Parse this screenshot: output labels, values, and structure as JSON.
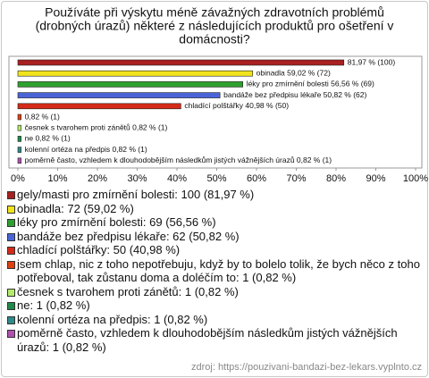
{
  "chart_data": {
    "type": "bar",
    "orientation": "horizontal",
    "title": [
      "Používáte při výskytu méně závažných zdravotních problémů",
      "(drobných úrazů) některé z následujících produktů pro ošetření v",
      "domácnosti?"
    ],
    "values": [
      81.97,
      59.02,
      56.56,
      50.82,
      40.98,
      0.82,
      0.82,
      0.82,
      0.82,
      0.82
    ],
    "value_labels": [
      "81,97 % (100)",
      "obinadla 59,02 % (72)",
      "léky pro zmírnění bolesti 56,56 % (69)",
      "bandáže bez předpisu lékaře 50,82 % (62)",
      "chladící polštářky 40,98 % (50)",
      "0,82 % (1)",
      "česnek s tvarohem proti zánětů 0,82 % (1)",
      "ne 0,82 % (1)",
      "kolenní ortéza na předpis 0,82 % (1)",
      "poměrně často, vzhledem k dlouhodobějším následkům jistých vážnějších úrazů 0,82 % (1)"
    ],
    "colors": [
      "#a82020",
      "#f2e41c",
      "#2ea02e",
      "#4a64d8",
      "#d42a1a",
      "#e04010",
      "#b4ec6c",
      "#1f8a4a",
      "#2f8a8a",
      "#b050b0"
    ],
    "legend": [
      "gely/masti pro zmírnění bolesti: 100 (81,97 %)",
      "obinadla: 72 (59,02 %)",
      "léky pro zmírnění bolesti: 69 (56,56 %)",
      "bandáže bez předpisu lékaře: 62 (50,82 %)",
      "chladící polštářky: 50 (40,98 %)",
      "jsem chlap, nic z toho nepotřebuju, když by to bolelo tolik, že bych něco z toho potřeboval, tak zůstanu doma a doléčím to: 1 (0,82 %)",
      "česnek s tvarohem proti zánětů: 1 (0,82 %)",
      "ne: 1 (0,82 %)",
      "kolenní ortéza na předpis: 1 (0,82 %)",
      "poměrně často, vzhledem k dlouhodobějším následkům jistých vážnějších úrazů: 1 (0,82 %)"
    ],
    "xlim": [
      0,
      100
    ],
    "xticks": [
      {
        "value": 0,
        "label": "0%"
      },
      {
        "value": 10,
        "label": "10%"
      },
      {
        "value": 20,
        "label": "20%"
      },
      {
        "value": 30,
        "label": "30%"
      },
      {
        "value": 40,
        "label": "40%"
      },
      {
        "value": 50,
        "label": "50%"
      },
      {
        "value": 60,
        "label": "60%"
      },
      {
        "value": 70,
        "label": "70%"
      },
      {
        "value": 80,
        "label": "80%"
      },
      {
        "value": 90,
        "label": "90%"
      },
      {
        "value": 100,
        "label": "100%"
      }
    ],
    "source": "zdroj: https://pouzivani-bandazi-bez-lekars.vyplnto.cz"
  }
}
